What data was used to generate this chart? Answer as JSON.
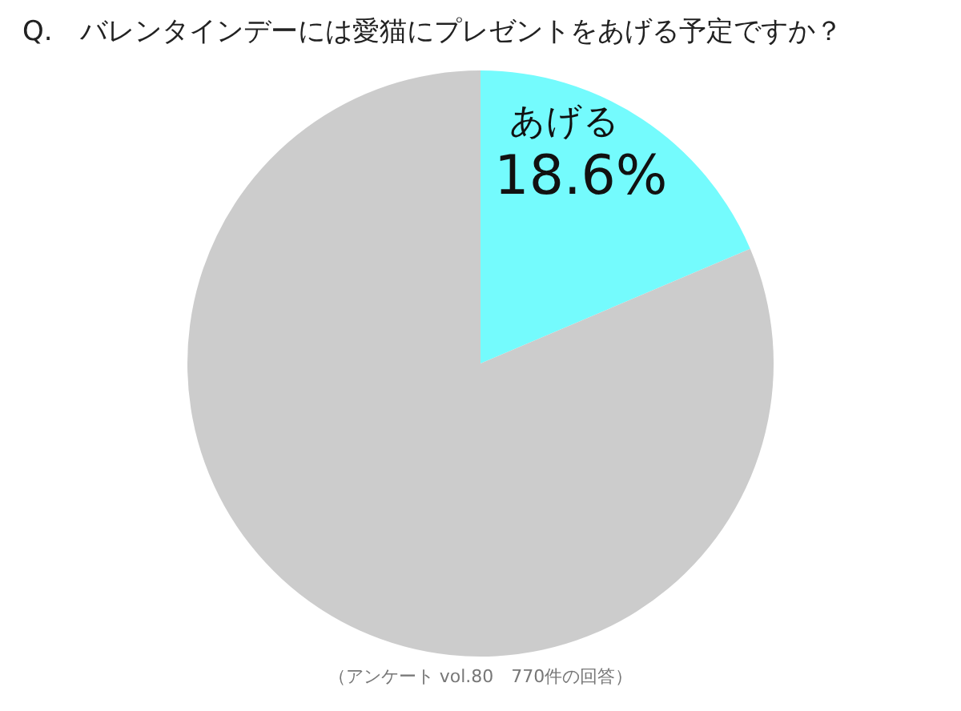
{
  "chart_data": {
    "type": "pie",
    "title": "Q.　バレンタインデーには愛猫にプレゼントをあげる予定ですか？",
    "categories": [
      "あげる",
      null
    ],
    "values": [
      18.6,
      81.4
    ],
    "colors": [
      "#74fbfd",
      "#cccccc"
    ],
    "value_labels": [
      "18.6%",
      null
    ],
    "annotations": [
      "（アンケート vol.80　770件の回答）"
    ]
  }
}
